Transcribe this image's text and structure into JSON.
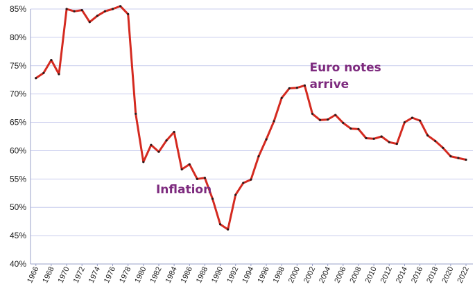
{
  "chart_data": {
    "type": "line",
    "title": "",
    "xlabel": "",
    "ylabel": "",
    "ylim": [
      40,
      85
    ],
    "y_ticks": [
      "40%",
      "45%",
      "50%",
      "55%",
      "60%",
      "65%",
      "70%",
      "75%",
      "80%",
      "85%"
    ],
    "y_tick_values": [
      40,
      45,
      50,
      55,
      60,
      65,
      70,
      75,
      80,
      85
    ],
    "x_ticks": [
      "1966",
      "1968",
      "1970",
      "1972",
      "1974",
      "1976",
      "1978",
      "1980",
      "1982",
      "1984",
      "1986",
      "1988",
      "1990",
      "1992",
      "1994",
      "1996",
      "1998",
      "2000",
      "2002",
      "2004",
      "2006",
      "2008",
      "2010",
      "2012",
      "2014",
      "2016",
      "2018",
      "2020",
      "2022"
    ],
    "grid": true,
    "line_color": "#d42a20",
    "marker_color": "#2b1a1a",
    "annotation_color": "#7d2a7e",
    "series": [
      {
        "x": [
          1966,
          1967,
          1968,
          1969,
          1970,
          1971,
          1972,
          1973,
          1974,
          1975,
          1976,
          1977,
          1978,
          1979,
          1980,
          1981,
          1982,
          1983,
          1984,
          1985,
          1986,
          1987,
          1988,
          1989,
          1990,
          1991,
          1992,
          1993,
          1994,
          1995,
          1996,
          1997,
          1998,
          1999,
          2000,
          2001,
          2002,
          2003,
          2004,
          2005,
          2006,
          2007,
          2008,
          2009,
          2010,
          2011,
          2012,
          2013,
          2014,
          2015,
          2016,
          2017,
          2018,
          2019,
          2020,
          2021,
          2022
        ],
        "values": [
          72.8,
          73.7,
          76.0,
          73.5,
          85.0,
          84.6,
          84.8,
          82.7,
          83.8,
          84.6,
          85.0,
          85.5,
          84.1,
          66.5,
          58.0,
          61.0,
          59.8,
          61.8,
          63.3,
          56.7,
          57.6,
          55.0,
          55.2,
          51.5,
          47.0,
          46.1,
          52.2,
          54.3,
          54.9,
          59.0,
          62.0,
          65.2,
          69.3,
          71.0,
          71.1,
          71.5,
          66.5,
          65.4,
          65.5,
          66.3,
          64.9,
          63.9,
          63.8,
          62.2,
          62.1,
          62.5,
          61.5,
          61.2,
          65.0,
          65.8,
          65.3,
          62.7,
          61.7,
          60.5,
          59.0,
          58.7,
          58.4
        ]
      }
    ],
    "annotations": [
      {
        "lines": [
          "Euro notes",
          "arrive"
        ],
        "x": 2002,
        "y": 74.0
      },
      {
        "lines": [
          "Inflation"
        ],
        "x": 1982,
        "y": 52.5
      }
    ]
  }
}
